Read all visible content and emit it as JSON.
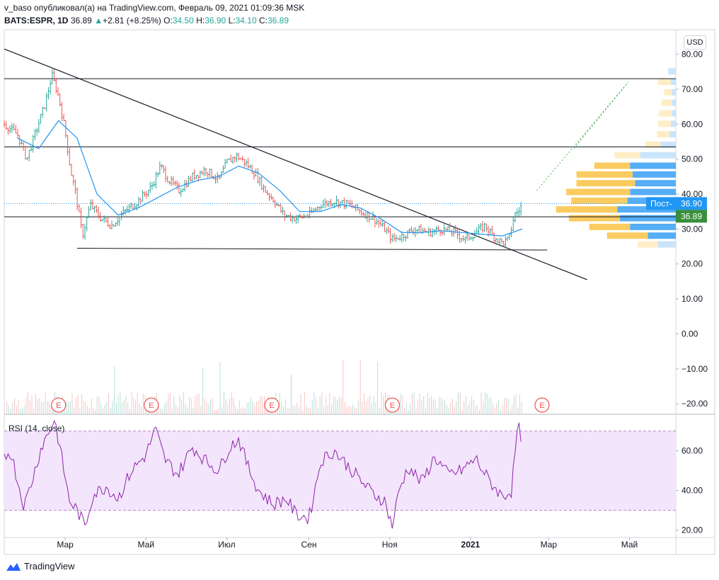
{
  "header": {
    "author": "v_baso",
    "published_text": "опубликовал(а) на TradingView.com, Февраль 09, 2021 01:09:36 MSK",
    "symbol": "BATS:ESPR, 1D",
    "last": "36.89",
    "change": "+2.81 (+8.25%)",
    "o_label": "O:",
    "o_value": "34.50",
    "h_label": "H:",
    "h_value": "36.90",
    "l_label": "L:",
    "l_value": "34.10",
    "c_label": "C:",
    "c_value": "36.89"
  },
  "currency_button": "USD",
  "price_labels": {
    "post_text": "Пост-",
    "post_value": "36.90",
    "last_value": "36.89",
    "post_color": "#2196f3",
    "last_color": "#388e3c"
  },
  "earnings_marker": "E",
  "rsi_title": "RSI (14, close)",
  "footer": {
    "brand": "TradingView"
  },
  "chart_data": {
    "type": "candlestick",
    "ylim": [
      -23,
      87
    ],
    "price_ticks": [
      "80.00",
      "70.00",
      "60.00",
      "50.00",
      "40.00",
      "30.00",
      "20.00",
      "10.00",
      "0.00",
      "−10.00",
      "−20.00"
    ],
    "price_tick_values": [
      80,
      70,
      60,
      50,
      40,
      30,
      20,
      10,
      0,
      -10,
      -20
    ],
    "x_ticks": [
      "Мар",
      "Май",
      "Июл",
      "Сен",
      "Ноя",
      "2021",
      "Мар",
      "Май"
    ],
    "x_tick_dates": [
      "2020-03-01",
      "2020-05-01",
      "2020-07-01",
      "2020-09-01",
      "2020-11-01",
      "2021-01-01",
      "2021-03-01",
      "2021-05-01"
    ],
    "x_range": [
      "2020-01-15",
      "2021-06-05"
    ],
    "rsi_ticks": [
      "60.00",
      "40.00",
      "20.00"
    ],
    "rsi_tick_values": [
      60,
      40,
      20
    ],
    "rsi_range": [
      17,
      77
    ],
    "rsi_bands": [
      30,
      70
    ],
    "horizontal_levels": [
      73,
      53.5,
      33.5
    ],
    "support_line": {
      "from": [
        "2020-03-10",
        24.5
      ],
      "to": [
        "2021-02-28",
        24.0
      ]
    },
    "trend_line": {
      "from": [
        "2020-01-15",
        81.5
      ],
      "to": [
        "2021-03-30",
        15.5
      ]
    },
    "projection": {
      "from": [
        "2021-02-20",
        41
      ],
      "to": [
        "2021-04-30",
        72
      ]
    },
    "earnings_dates": [
      "2020-02-25",
      "2020-05-05",
      "2020-08-04",
      "2020-11-03",
      "2021-02-24"
    ],
    "close_path": [
      [
        "2020-01-15",
        60
      ],
      [
        "2020-01-25",
        57
      ],
      [
        "2020-02-01",
        50
      ],
      [
        "2020-02-08",
        58
      ],
      [
        "2020-02-15",
        66
      ],
      [
        "2020-02-20",
        74
      ],
      [
        "2020-02-25",
        68
      ],
      [
        "2020-03-01",
        58
      ],
      [
        "2020-03-05",
        47
      ],
      [
        "2020-03-09",
        40
      ],
      [
        "2020-03-14",
        28
      ],
      [
        "2020-03-20",
        37
      ],
      [
        "2020-03-28",
        33
      ],
      [
        "2020-04-05",
        31
      ],
      [
        "2020-04-15",
        35
      ],
      [
        "2020-04-25",
        38
      ],
      [
        "2020-05-05",
        42
      ],
      [
        "2020-05-12",
        48
      ],
      [
        "2020-05-18",
        44
      ],
      [
        "2020-05-26",
        41
      ],
      [
        "2020-06-05",
        45
      ],
      [
        "2020-06-15",
        47
      ],
      [
        "2020-06-25",
        44
      ],
      [
        "2020-07-01",
        49
      ],
      [
        "2020-07-08",
        51
      ],
      [
        "2020-07-15",
        49
      ],
      [
        "2020-07-22",
        46
      ],
      [
        "2020-07-30",
        41
      ],
      [
        "2020-08-06",
        38
      ],
      [
        "2020-08-13",
        34
      ],
      [
        "2020-08-22",
        33
      ],
      [
        "2020-09-01",
        34
      ],
      [
        "2020-09-10",
        37
      ],
      [
        "2020-09-20",
        38
      ],
      [
        "2020-10-01",
        37
      ],
      [
        "2020-10-10",
        35
      ],
      [
        "2020-10-20",
        33
      ],
      [
        "2020-10-28",
        30
      ],
      [
        "2020-11-03",
        27
      ],
      [
        "2020-11-10",
        28
      ],
      [
        "2020-11-20",
        30
      ],
      [
        "2020-12-01",
        29
      ],
      [
        "2020-12-10",
        30
      ],
      [
        "2020-12-20",
        29
      ],
      [
        "2020-12-28",
        27
      ],
      [
        "2021-01-05",
        29
      ],
      [
        "2021-01-12",
        31
      ],
      [
        "2021-01-18",
        28
      ],
      [
        "2021-01-25",
        26
      ],
      [
        "2021-01-30",
        27
      ],
      [
        "2021-02-03",
        34
      ],
      [
        "2021-02-06",
        35
      ],
      [
        "2021-02-09",
        36.89
      ]
    ],
    "ma_path": [
      [
        "2020-01-25",
        56
      ],
      [
        "2020-02-10",
        53
      ],
      [
        "2020-02-25",
        61
      ],
      [
        "2020-03-10",
        56
      ],
      [
        "2020-03-25",
        40
      ],
      [
        "2020-04-10",
        34
      ],
      [
        "2020-04-25",
        36
      ],
      [
        "2020-05-10",
        39
      ],
      [
        "2020-05-25",
        42
      ],
      [
        "2020-06-10",
        44
      ],
      [
        "2020-06-25",
        45
      ],
      [
        "2020-07-10",
        48
      ],
      [
        "2020-07-25",
        46
      ],
      [
        "2020-08-10",
        41
      ],
      [
        "2020-08-25",
        35
      ],
      [
        "2020-09-10",
        35
      ],
      [
        "2020-09-25",
        37
      ],
      [
        "2020-10-10",
        36
      ],
      [
        "2020-10-25",
        33
      ],
      [
        "2020-11-10",
        29
      ],
      [
        "2020-11-25",
        29
      ],
      [
        "2020-12-10",
        29.5
      ],
      [
        "2020-12-25",
        29
      ],
      [
        "2021-01-10",
        28.5
      ],
      [
        "2021-01-25",
        28
      ],
      [
        "2021-02-09",
        30
      ]
    ],
    "rsi_path": [
      [
        "2020-01-15",
        57
      ],
      [
        "2020-01-20",
        60
      ],
      [
        "2020-01-25",
        45
      ],
      [
        "2020-01-30",
        32
      ],
      [
        "2020-02-05",
        45
      ],
      [
        "2020-02-12",
        62
      ],
      [
        "2020-02-18",
        70
      ],
      [
        "2020-02-22",
        76
      ],
      [
        "2020-02-27",
        58
      ],
      [
        "2020-03-04",
        35
      ],
      [
        "2020-03-10",
        30
      ],
      [
        "2020-03-16",
        22
      ],
      [
        "2020-03-22",
        38
      ],
      [
        "2020-04-01",
        42
      ],
      [
        "2020-04-10",
        36
      ],
      [
        "2020-04-20",
        50
      ],
      [
        "2020-05-01",
        58
      ],
      [
        "2020-05-08",
        71
      ],
      [
        "2020-05-15",
        56
      ],
      [
        "2020-05-25",
        48
      ],
      [
        "2020-06-05",
        62
      ],
      [
        "2020-06-15",
        55
      ],
      [
        "2020-06-25",
        50
      ],
      [
        "2020-07-03",
        62
      ],
      [
        "2020-07-10",
        66
      ],
      [
        "2020-07-17",
        52
      ],
      [
        "2020-07-25",
        40
      ],
      [
        "2020-08-05",
        33
      ],
      [
        "2020-08-15",
        36
      ],
      [
        "2020-08-22",
        28
      ],
      [
        "2020-09-01",
        26
      ],
      [
        "2020-09-10",
        55
      ],
      [
        "2020-09-20",
        60
      ],
      [
        "2020-10-01",
        52
      ],
      [
        "2020-10-10",
        45
      ],
      [
        "2020-10-20",
        38
      ],
      [
        "2020-10-28",
        35
      ],
      [
        "2020-11-03",
        22
      ],
      [
        "2020-11-08",
        40
      ],
      [
        "2020-11-15",
        52
      ],
      [
        "2020-11-25",
        44
      ],
      [
        "2020-12-05",
        57
      ],
      [
        "2020-12-15",
        48
      ],
      [
        "2020-12-25",
        50
      ],
      [
        "2021-01-05",
        56
      ],
      [
        "2021-01-15",
        45
      ],
      [
        "2021-01-25",
        37
      ],
      [
        "2021-02-01",
        40
      ],
      [
        "2021-02-04",
        62
      ],
      [
        "2021-02-06",
        72
      ],
      [
        "2021-02-09",
        66
      ]
    ],
    "volume_profile": [
      {
        "price": 75,
        "up": 0,
        "down": 1.5
      },
      {
        "price": 72,
        "up": 2.5,
        "down": 1
      },
      {
        "price": 69,
        "up": 1.5,
        "down": 0.8
      },
      {
        "price": 66,
        "up": 2,
        "down": 0.8
      },
      {
        "price": 63,
        "up": 2.5,
        "down": 0.8
      },
      {
        "price": 60,
        "up": 2.5,
        "down": 1
      },
      {
        "price": 57,
        "up": 2.5,
        "down": 1.2
      },
      {
        "price": 54,
        "up": 3,
        "down": 3
      },
      {
        "price": 51,
        "up": 5,
        "down": 7
      },
      {
        "price": 48,
        "up": 7,
        "down": 9
      },
      {
        "price": 45.5,
        "up": 11,
        "down": 8.5
      },
      {
        "price": 43,
        "up": 11.5,
        "down": 8
      },
      {
        "price": 40.5,
        "up": 12.5,
        "down": 9
      },
      {
        "price": 38,
        "up": 11,
        "down": 9.5
      },
      {
        "price": 35.5,
        "up": 12,
        "down": 11.5
      },
      {
        "price": 33,
        "up": 10,
        "down": 11
      },
      {
        "price": 30.5,
        "up": 8,
        "down": 9
      },
      {
        "price": 28,
        "up": 8,
        "down": 5.5
      },
      {
        "price": 25.5,
        "up": 4,
        "down": 3.5
      }
    ]
  }
}
